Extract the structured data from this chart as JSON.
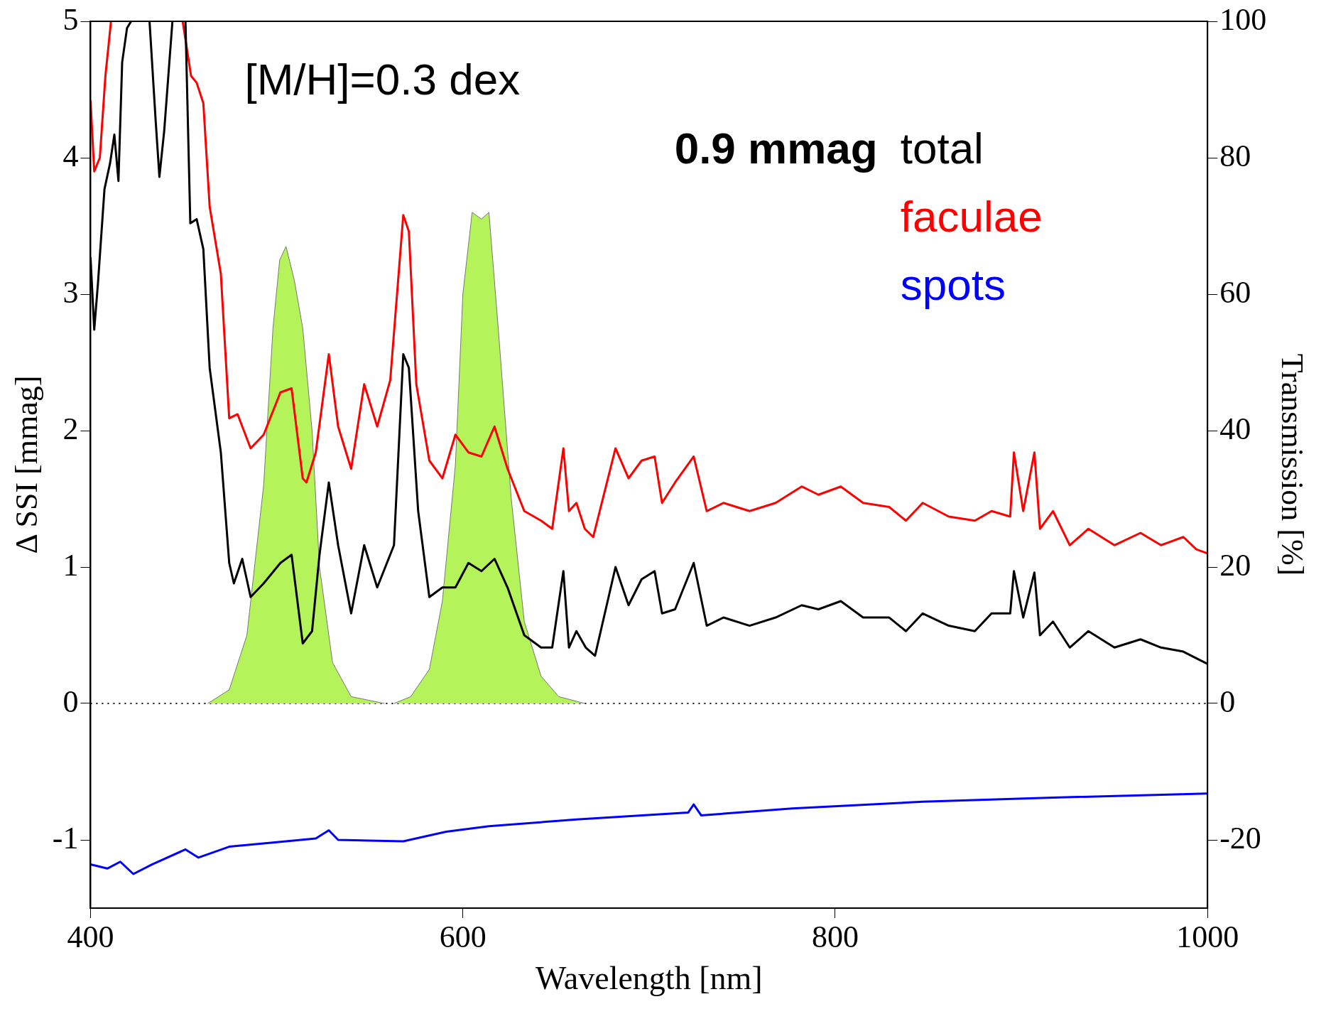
{
  "chart_data": {
    "type": "line",
    "xlabel": "Wavelength [nm]",
    "ylabel": "Δ SSI [mmag]",
    "y2label": "Transmission [%]",
    "xlim": [
      400,
      1000
    ],
    "xticks": [
      400,
      600,
      800,
      1000
    ],
    "ylim": [
      -1.5,
      5
    ],
    "yticks": [
      -1,
      0,
      1,
      2,
      3,
      4,
      5
    ],
    "y2lim": [
      -30,
      100
    ],
    "y2ticks": [
      -20,
      0,
      20,
      40,
      60,
      80,
      100
    ],
    "grid": false,
    "legend": "top right",
    "marker": "none",
    "line_style": "solid",
    "annotations": [
      "[M/H]=0.3 dex",
      "0.9 mmag"
    ],
    "ref_lines": [
      {
        "axis": "y",
        "value": 0,
        "color": "#000000",
        "line_style": "dotted"
      }
    ],
    "series": [
      {
        "type": "area",
        "axis": "y2",
        "color": "#b5f35a",
        "x": [
          463,
          474.5,
          484,
          493,
          498,
          501.6,
          505,
          509.5,
          514,
          519,
          523,
          530,
          540,
          558
        ],
        "values": [
          0,
          2,
          10,
          32,
          55,
          65,
          67,
          62,
          55,
          40,
          20,
          6,
          1,
          0
        ]
      },
      {
        "type": "area",
        "axis": "y2",
        "color": "#b5f35a",
        "x": [
          563,
          572,
          582,
          589,
          596,
          600,
          605,
          610,
          614,
          619,
          626,
          633,
          642,
          651.5,
          665.5
        ],
        "values": [
          0,
          1,
          5,
          15,
          35,
          60,
          72,
          71,
          72,
          55,
          30,
          12,
          4,
          1,
          0
        ]
      },
      {
        "name": "total",
        "color": "#000000",
        "x": [
          400,
          402,
          404,
          407.5,
          410.5,
          412.8,
          415,
          417,
          419.6,
          421.8,
          423,
          424,
          431.7,
          435,
          437,
          439.6,
          444,
          445,
          450,
          451,
          453.6,
          457,
          460.6,
          464,
          470,
          474.5,
          477,
          481.5,
          486,
          493,
          502,
          508,
          514,
          519,
          523,
          528,
          533,
          540,
          547,
          554,
          563,
          568,
          571,
          576,
          582,
          589,
          596,
          603,
          610,
          617,
          624,
          633,
          642,
          648,
          654,
          657,
          661,
          666,
          671,
          682,
          689,
          696,
          703,
          707,
          714,
          724,
          731,
          740,
          754,
          768,
          782,
          791,
          803,
          815,
          829,
          838,
          847,
          861,
          875,
          884,
          894,
          896,
          901,
          907,
          910,
          917,
          926,
          936,
          950,
          964,
          975,
          987,
          1000
        ],
        "values": [
          3.27,
          2.74,
          3.08,
          3.77,
          3.96,
          4.17,
          3.83,
          4.7,
          4.95,
          5,
          null,
          null,
          5,
          4.27,
          3.86,
          4.2,
          5,
          null,
          null,
          5,
          3.52,
          3.55,
          3.33,
          2.46,
          1.84,
          1.03,
          0.88,
          1.06,
          0.78,
          0.88,
          1.03,
          1.09,
          0.44,
          0.53,
          1.09,
          1.62,
          1.16,
          0.66,
          1.16,
          0.85,
          1.16,
          2.56,
          2.46,
          1.41,
          0.78,
          0.85,
          0.85,
          1.03,
          0.97,
          1.06,
          0.85,
          0.5,
          0.41,
          0.41,
          0.97,
          0.41,
          0.53,
          0.41,
          0.35,
          1.0,
          0.72,
          0.91,
          0.97,
          0.66,
          0.69,
          1.03,
          0.57,
          0.63,
          0.57,
          0.63,
          0.72,
          0.69,
          0.75,
          0.63,
          0.63,
          0.53,
          0.66,
          0.57,
          0.53,
          0.66,
          0.66,
          0.97,
          0.63,
          0.96,
          0.5,
          0.6,
          0.41,
          0.53,
          0.41,
          0.47,
          0.41,
          0.38,
          0.29
        ]
      },
      {
        "name": "faculae",
        "color": "#ff0000",
        "x": [
          400,
          402,
          405,
          408,
          411,
          412,
          448,
          449.5,
          454,
          457,
          460.6,
          464,
          470,
          474.5,
          479,
          486,
          493,
          502,
          508,
          514,
          516,
          521,
          528,
          533,
          540,
          547,
          554,
          561,
          568,
          571,
          575,
          582,
          589,
          596,
          603,
          610,
          617,
          624,
          633,
          642,
          648,
          654,
          657,
          661,
          665.5,
          670,
          682,
          689,
          696,
          703,
          707,
          714,
          724,
          731,
          740,
          754,
          768,
          782,
          791,
          803,
          815,
          829,
          838,
          847,
          861,
          875,
          884,
          894,
          896,
          901,
          907,
          910,
          917,
          926,
          936,
          950,
          964,
          975,
          987,
          994,
          1000
        ],
        "values": [
          4.42,
          3.9,
          4.0,
          4.6,
          5,
          null,
          null,
          5,
          4.6,
          4.55,
          4.4,
          3.64,
          3.15,
          2.09,
          2.12,
          1.87,
          1.97,
          2.28,
          2.31,
          1.65,
          1.62,
          1.84,
          2.56,
          2.03,
          1.72,
          2.34,
          2.03,
          2.37,
          3.58,
          3.46,
          2.34,
          1.78,
          1.65,
          1.97,
          1.84,
          1.81,
          2.03,
          1.72,
          1.41,
          1.34,
          1.28,
          1.87,
          1.41,
          1.47,
          1.28,
          1.22,
          1.87,
          1.65,
          1.78,
          1.81,
          1.47,
          1.62,
          1.81,
          1.41,
          1.47,
          1.41,
          1.47,
          1.59,
          1.53,
          1.59,
          1.47,
          1.44,
          1.34,
          1.47,
          1.37,
          1.34,
          1.41,
          1.37,
          1.84,
          1.41,
          1.84,
          1.28,
          1.41,
          1.16,
          1.28,
          1.16,
          1.25,
          1.16,
          1.22,
          1.13,
          1.1
        ]
      },
      {
        "name": "spots",
        "color": "#0000ff",
        "x": [
          400,
          409,
          416,
          423,
          433,
          451,
          458,
          474.5,
          498,
          521,
          528,
          533,
          568,
          591,
          614,
          661,
          721,
          724,
          728,
          777,
          847,
          917,
          1000
        ],
        "values": [
          -1.18,
          -1.21,
          -1.16,
          -1.25,
          -1.18,
          -1.07,
          -1.13,
          -1.05,
          -1.02,
          -0.99,
          -0.93,
          -1.0,
          -1.01,
          -0.94,
          -0.9,
          -0.85,
          -0.8,
          -0.74,
          -0.82,
          -0.77,
          -0.72,
          -0.69,
          -0.66
        ]
      }
    ]
  }
}
